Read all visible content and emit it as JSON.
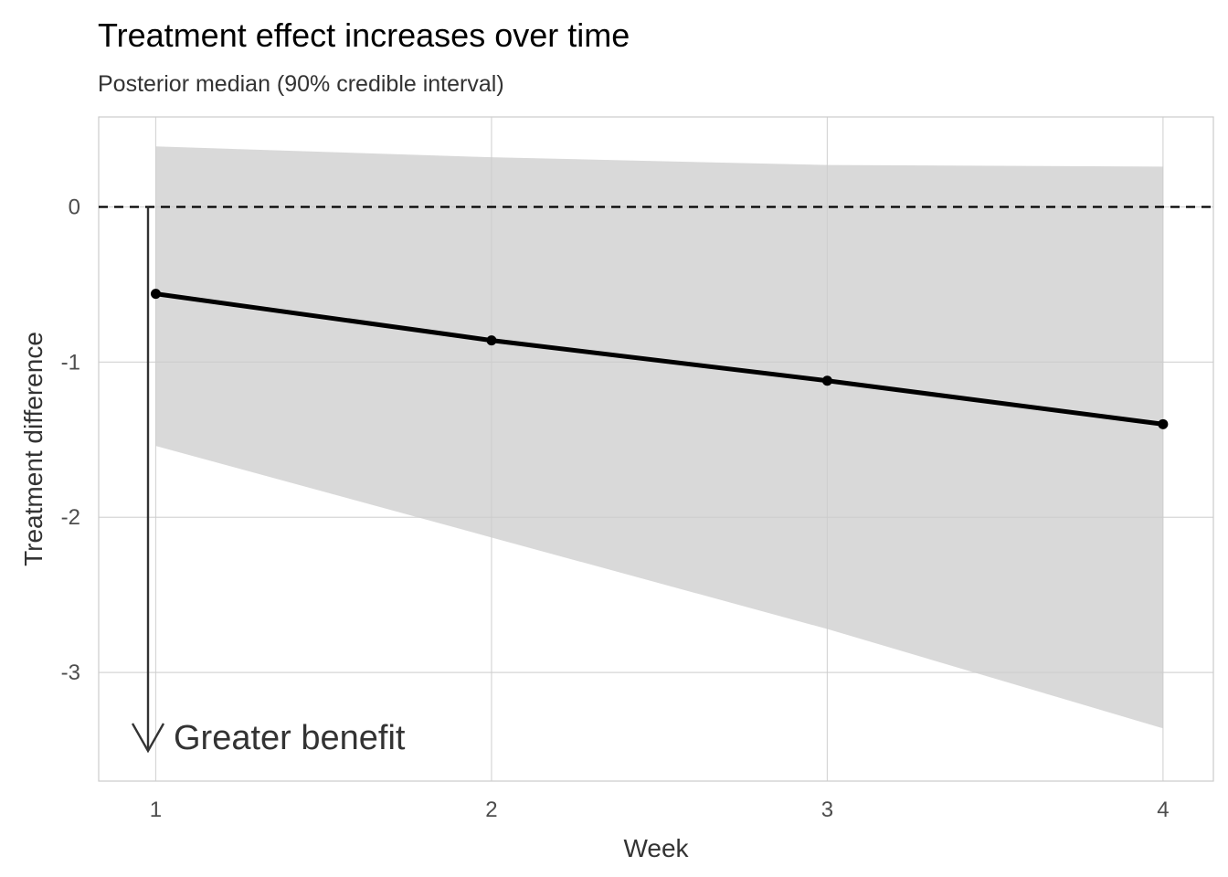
{
  "chart_data": {
    "type": "line",
    "title": "Treatment effect increases over time",
    "subtitle": "Posterior median (90% credible interval)",
    "xlabel": "Week",
    "ylabel": "Treatment difference",
    "x": [
      1,
      2,
      3,
      4
    ],
    "series": [
      {
        "median": [
          -0.56,
          -0.86,
          -1.12,
          -1.4
        ],
        "lower": [
          -1.54,
          -2.13,
          -2.72,
          -3.36
        ],
        "upper": [
          0.39,
          0.32,
          0.27,
          0.26
        ]
      }
    ],
    "xticks": [
      "1",
      "2",
      "3",
      "4"
    ],
    "yticks": [
      0,
      -1,
      -2,
      -3
    ],
    "ytick_labels": [
      "0",
      "-1",
      "-2",
      "-3"
    ],
    "xlim": [
      0.83,
      4.15
    ],
    "ylim": [
      -3.7,
      0.58
    ],
    "reference_line": 0,
    "annotation": "Greater benefit",
    "grid": true,
    "colors": {
      "line": "#000000",
      "band": "#d9d9d9",
      "grid": "#cccccc",
      "arrow": "#333333"
    }
  }
}
